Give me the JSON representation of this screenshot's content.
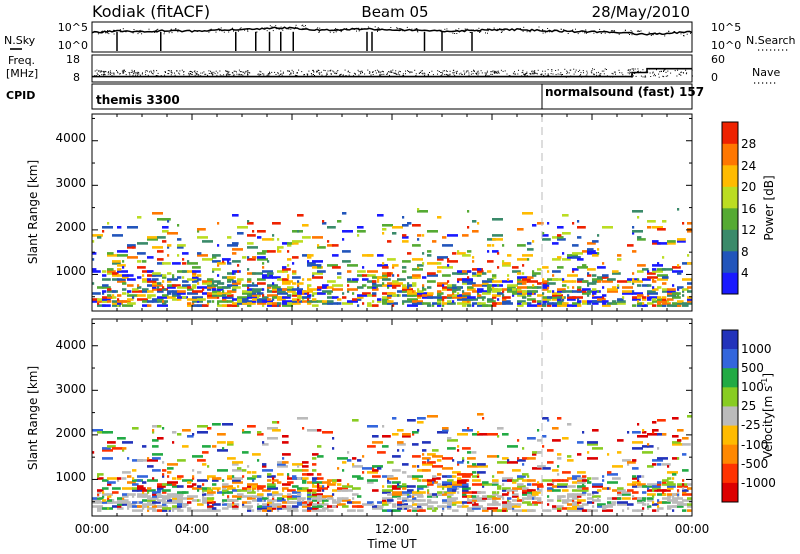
{
  "header": {
    "station": "Kodiak (fitACF)",
    "beam": "Beam 05",
    "date": "28/May/2010"
  },
  "side_labels": {
    "nsky": "N.Sky",
    "freq_line1": "Freq.",
    "freq_line2": "[MHz]",
    "cpid": "CPID",
    "nsearch": "N.Search",
    "nave": "Nave"
  },
  "colors": {
    "power": [
      "#1a1aff",
      "#2255bb",
      "#3a8a6a",
      "#55aa33",
      "#bbdd22",
      "#ffbb00",
      "#ff7700",
      "#ee2200"
    ],
    "velocity": [
      "#2233bb",
      "#3366dd",
      "#22aa44",
      "#88cc22",
      "#bbbbbb",
      "#ffbb00",
      "#ff8800",
      "#ff3300",
      "#dd0000"
    ]
  },
  "chart_data": [
    {
      "id": "nsky_nsearch",
      "type": "line",
      "ylabel_left": "N.Sky",
      "ylabel_right": "N.Search",
      "ytick_labels_left": [
        "10^5",
        "10^0"
      ],
      "ytick_labels_right": [
        "10^5",
        "10^0"
      ],
      "x": [
        0,
        1,
        2,
        3,
        4,
        5,
        6,
        7,
        8,
        9,
        10,
        11,
        12,
        13,
        14,
        15,
        16,
        17,
        18,
        19,
        20,
        21,
        22,
        23,
        24
      ],
      "nsky_log10": [
        3.4,
        3.6,
        3.5,
        3.7,
        3.6,
        3.8,
        3.9,
        4.1,
        4.2,
        3.8,
        3.9,
        4.0,
        3.9,
        3.7,
        3.6,
        3.7,
        3.8,
        3.9,
        3.7,
        3.6,
        3.5,
        3.4,
        3.1,
        3.2,
        3.5
      ],
      "dropouts_ut": [
        1.0,
        2.75,
        5.75,
        6.55,
        7.1,
        7.55,
        8.05,
        11.0,
        11.2,
        13.3,
        14.0,
        15.2
      ]
    },
    {
      "id": "freq_nave",
      "type": "line",
      "ylabel_left_line1": "Freq.",
      "ylabel_left_line2": "[MHz]",
      "ylabel_right": "Nave",
      "ytick_labels_left": [
        "18",
        "8"
      ],
      "ytick_labels_right": [
        "60",
        "0"
      ],
      "freq_mhz": [
        {
          "from": 0,
          "to": 21.6,
          "value": 10.3
        },
        {
          "from": 21.6,
          "to": 22.2,
          "value": 12.5
        },
        {
          "from": 22.2,
          "to": 24,
          "value": 14.5
        }
      ],
      "nave_typical": 27
    },
    {
      "id": "cpid",
      "type": "table",
      "label": "CPID",
      "segments": [
        {
          "from": 0,
          "to": 18.0,
          "name": "themis 3300"
        },
        {
          "from": 18.0,
          "to": 24,
          "name": "normalsound (fast) 157"
        }
      ]
    },
    {
      "id": "power_panel",
      "type": "heatmap",
      "ylabel": "Slant Range [km]",
      "ylim": [
        180,
        4600
      ],
      "yticks": [
        1000,
        2000,
        3000,
        4000
      ],
      "xlim": [
        0,
        24
      ],
      "colorbar_label": "Power [dB]",
      "colorbar_ticks": [
        "4",
        "8",
        "12",
        "16",
        "20",
        "24",
        "28"
      ],
      "colorbar_range": [
        0,
        32
      ],
      "mode_change_ut": 18.0
    },
    {
      "id": "velocity_panel",
      "type": "heatmap",
      "xlabel": "Time UT",
      "ylabel": "Slant Range [km]",
      "ylim": [
        180,
        4600
      ],
      "yticks": [
        1000,
        2000,
        3000,
        4000
      ],
      "xlim": [
        0,
        24
      ],
      "xtick_labels": [
        "00:00",
        "04:00",
        "08:00",
        "12:00",
        "16:00",
        "20:00",
        "00:00"
      ],
      "colorbar_label": "Velocity",
      "colorbar_unit": "[m s",
      "colorbar_unit_exp": "-1",
      "colorbar_unit_close": "]",
      "colorbar_ticks": [
        "1000",
        "500",
        "100",
        "25",
        "-25",
        "-100",
        "-500",
        "-1000"
      ],
      "mode_change_ut": 18.0
    }
  ]
}
